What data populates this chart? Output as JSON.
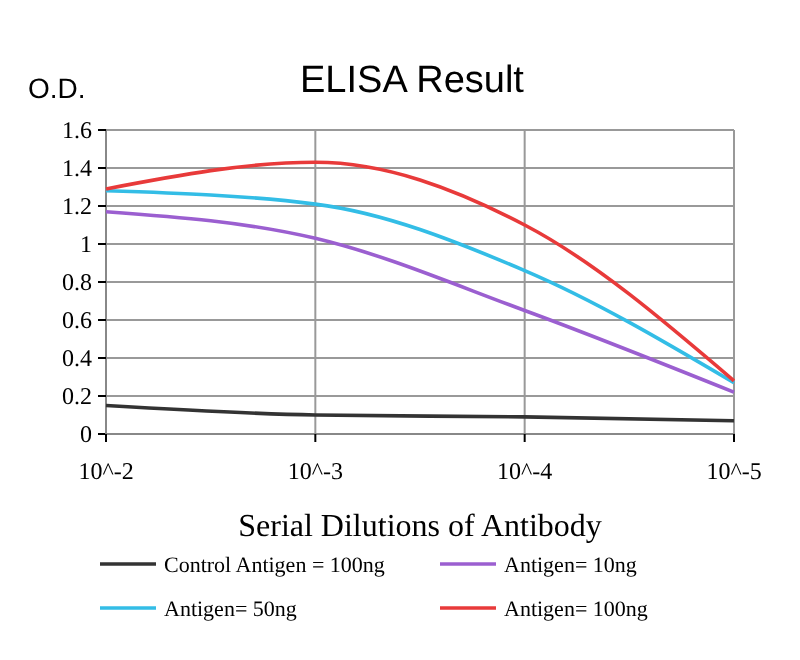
{
  "chart_data": {
    "type": "line",
    "title": "ELISA Result",
    "ylabel": "O.D.",
    "xlabel": "Serial Dilutions of Antibody",
    "categories": [
      "10^-2",
      "10^-3",
      "10^-4",
      "10^-5"
    ],
    "series": [
      {
        "name": "Control Antigen = 100ng",
        "color": "#333333",
        "values": [
          0.15,
          0.1,
          0.09,
          0.07
        ]
      },
      {
        "name": "Antigen= 10ng",
        "color": "#9b5fd0",
        "values": [
          1.17,
          1.03,
          0.65,
          0.22
        ]
      },
      {
        "name": "Antigen= 50ng",
        "color": "#33bde6",
        "values": [
          1.28,
          1.21,
          0.86,
          0.27
        ]
      },
      {
        "name": "Antigen= 100ng",
        "color": "#e83a3a",
        "values": [
          1.29,
          1.43,
          1.1,
          0.28
        ]
      }
    ],
    "ylim": [
      0,
      1.6
    ],
    "yticks": [
      0,
      0.2,
      0.4,
      0.6,
      0.8,
      1,
      1.2,
      1.4,
      1.6
    ],
    "grid": true,
    "legend": "bottom",
    "marker": "none",
    "line_style": "solid"
  }
}
